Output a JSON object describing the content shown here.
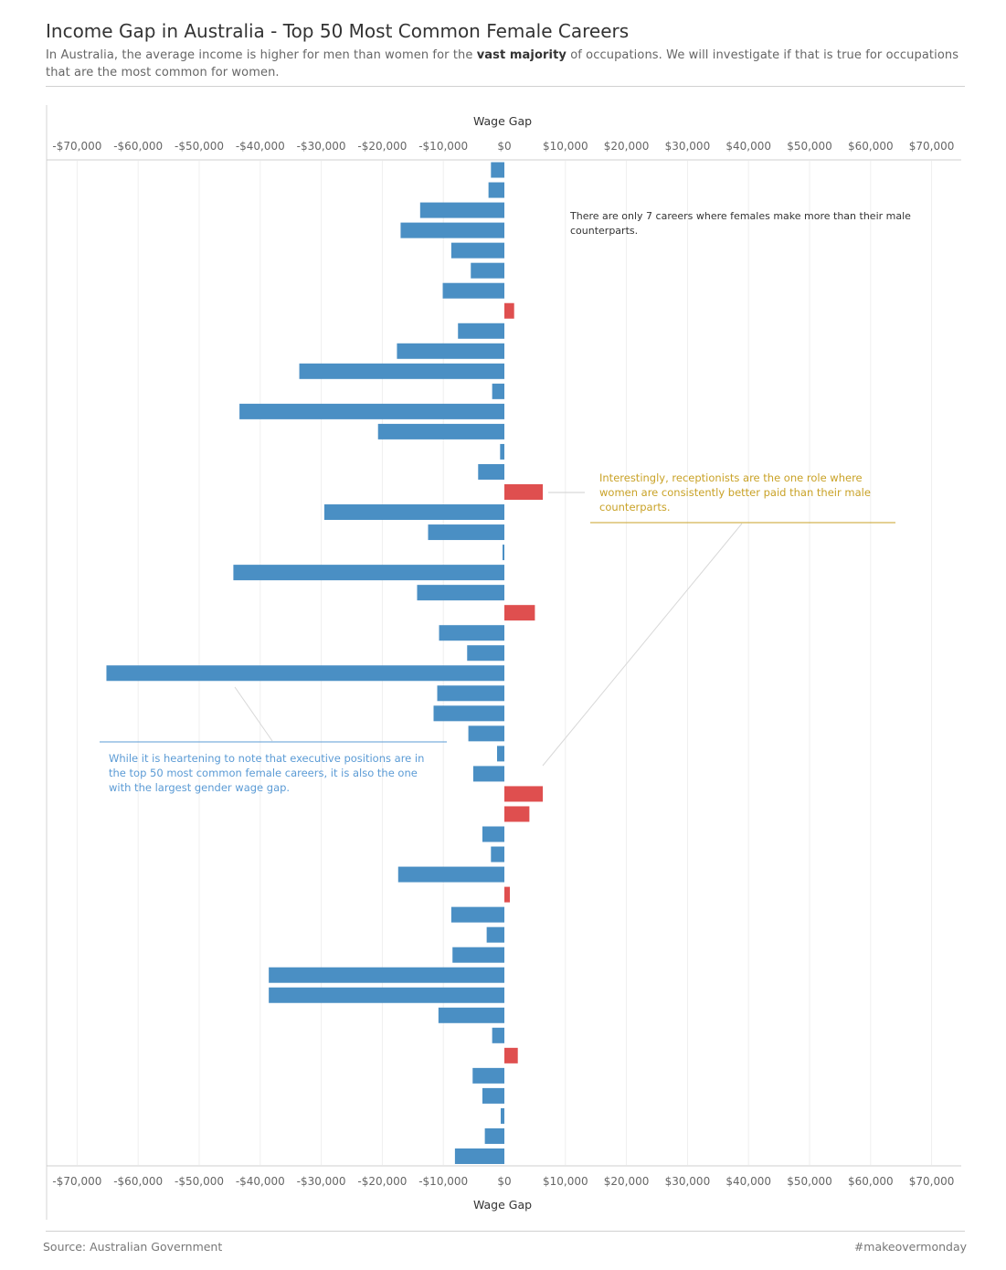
{
  "header": {
    "title": "Income Gap in Australia - Top 50 Most Common Female Careers",
    "subtitle_pre": "In Australia, the average income is higher for men than women for the ",
    "subtitle_bold": "vast majority",
    "subtitle_post": " of occupations. We will investigate if that is true for occupations that are the most common for women."
  },
  "footer": {
    "source": "Source: Australian Government",
    "hashtag": "#makeovermonday"
  },
  "annotations": {
    "top": "There are only 7 careers where females make more than their male counterparts.",
    "receptionists": "Interestingly, receptionists are the one role where women are consistently better paid than their male counterparts.",
    "executives": "While it is heartening to note that executive positions are in the top 50 most common female careers, it is also the one with the largest gender wage gap."
  },
  "colors": {
    "negative": "#4a8fc4",
    "positive": "#df4f4f",
    "annotation_gold": "#c9a227",
    "annotation_blue": "#5b9bd5",
    "annotation_dark": "#333333"
  },
  "chart_data": {
    "type": "bar",
    "orientation": "horizontal",
    "xlabel": "Wage Gap",
    "xlim": [
      -75000,
      75000
    ],
    "ticks": [
      "-$70,000",
      "-$60,000",
      "-$50,000",
      "-$40,000",
      "-$30,000",
      "-$20,000",
      "-$10,000",
      "$0",
      "$10,000",
      "$20,000",
      "$30,000",
      "$40,000",
      "$50,000",
      "$60,000",
      "$70,000"
    ],
    "tick_values": [
      -70000,
      -60000,
      -50000,
      -40000,
      -30000,
      -20000,
      -10000,
      0,
      10000,
      20000,
      30000,
      40000,
      50000,
      60000,
      70000
    ],
    "grid": true,
    "series": [
      {
        "values": [
          -2200,
          -2600,
          -13800,
          -17000,
          -8700,
          -5500,
          -10100,
          1600,
          -7600,
          -17600,
          -33600,
          -2000,
          -43400,
          -20700,
          -700,
          -4300,
          6300,
          -29500,
          -12500,
          -300,
          -44400,
          -14300,
          5000,
          -10700,
          -6100,
          -65200,
          -11000,
          -11600,
          -5900,
          -1200,
          -5100,
          6300,
          4100,
          -3600,
          -2200,
          -17400,
          900,
          -8700,
          -2900,
          -8500,
          -38600,
          -38600,
          -10800,
          -2000,
          2200,
          -5200,
          -3600,
          -600,
          -3200,
          -8100
        ]
      }
    ]
  }
}
